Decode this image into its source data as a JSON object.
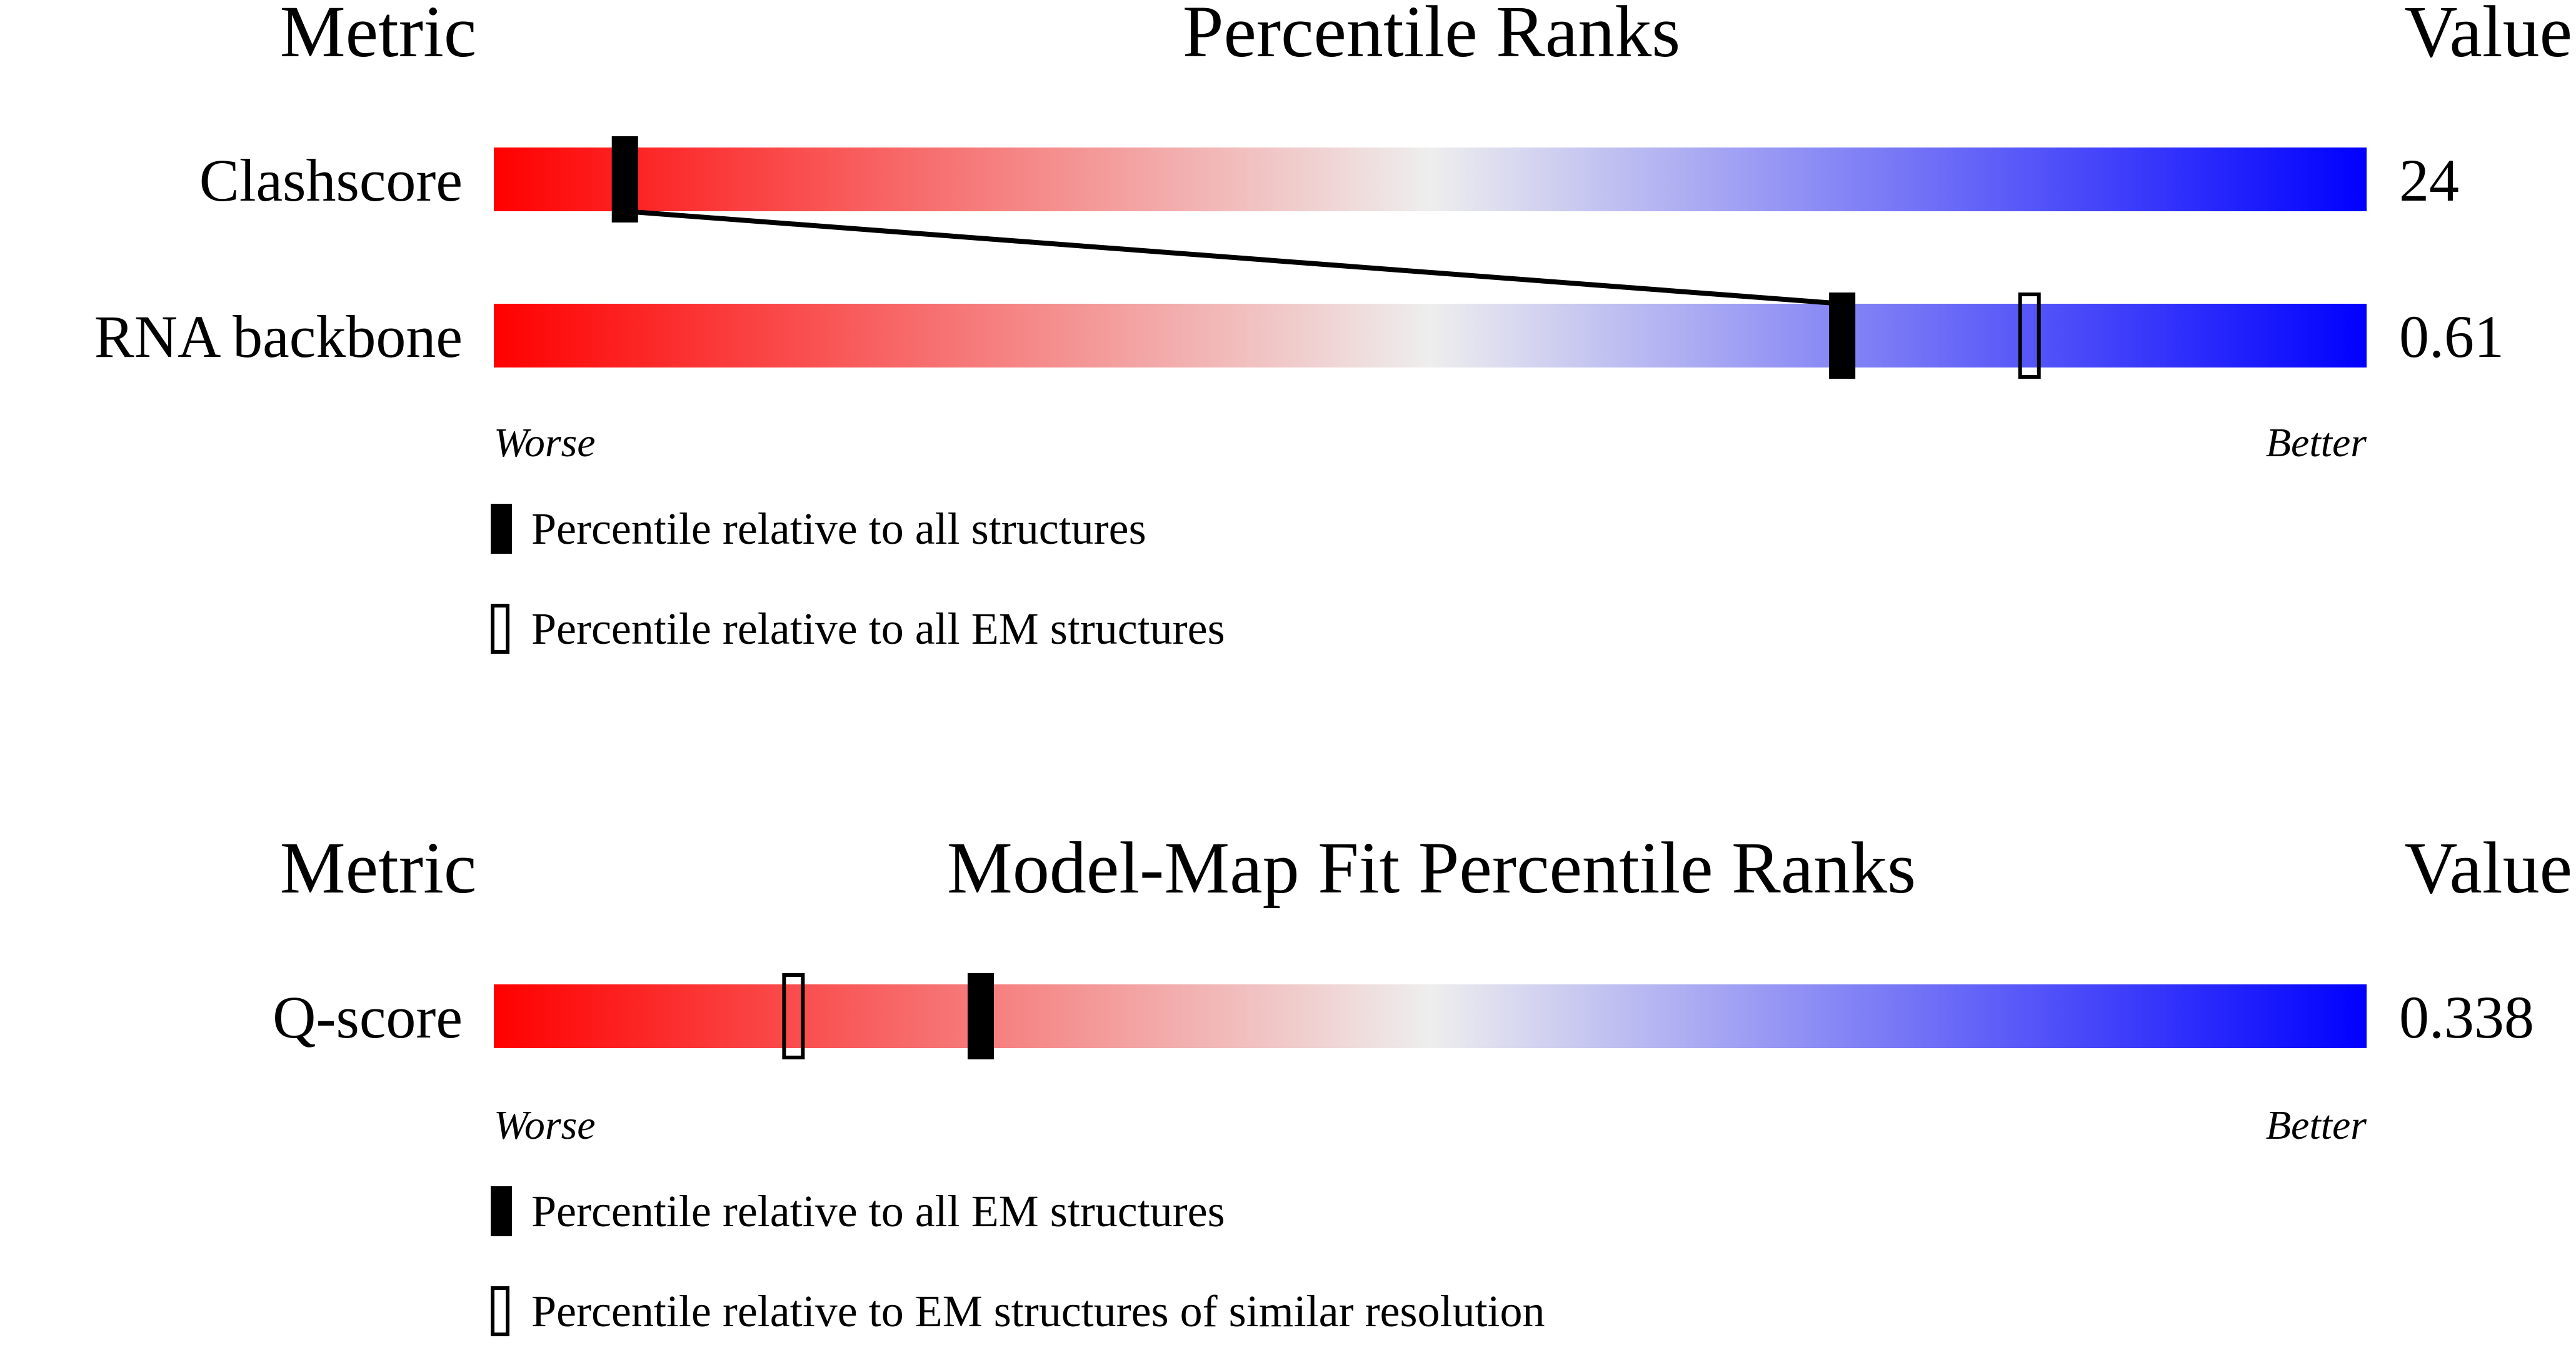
{
  "colors": {
    "worse": "#ff0000",
    "neutral": "#eeeeee",
    "better": "#0000ff",
    "marker": "#000000"
  },
  "chart_data": [
    {
      "type": "percentile-rank",
      "headers": {
        "metric": "Metric",
        "title": "Percentile Ranks",
        "value": "Value"
      },
      "scale_labels": {
        "worse": "Worse",
        "better": "Better"
      },
      "xlim": [
        0,
        100
      ],
      "legend": [
        {
          "marker": "filled",
          "label": "Percentile relative to all structures"
        },
        {
          "marker": "open",
          "label": "Percentile relative to all EM structures"
        }
      ],
      "rows": [
        {
          "metric": "Clashscore",
          "value": "24",
          "percentile_filled": 7,
          "percentile_open": null
        },
        {
          "metric": "RNA backbone",
          "value": "0.61",
          "percentile_filled": 72,
          "percentile_open": 82
        }
      ],
      "connector": {
        "from_row": 0,
        "to_row": 1
      }
    },
    {
      "type": "percentile-rank",
      "headers": {
        "metric": "Metric",
        "title": "Model-Map Fit Percentile Ranks",
        "value": "Value"
      },
      "scale_labels": {
        "worse": "Worse",
        "better": "Better"
      },
      "xlim": [
        0,
        100
      ],
      "legend": [
        {
          "marker": "filled",
          "label": "Percentile relative to all EM structures"
        },
        {
          "marker": "open",
          "label": "Percentile relative to EM structures of similar resolution"
        }
      ],
      "rows": [
        {
          "metric": "Q-score",
          "value": "0.338",
          "percentile_filled": 26,
          "percentile_open": 16
        }
      ],
      "connector": null
    }
  ]
}
